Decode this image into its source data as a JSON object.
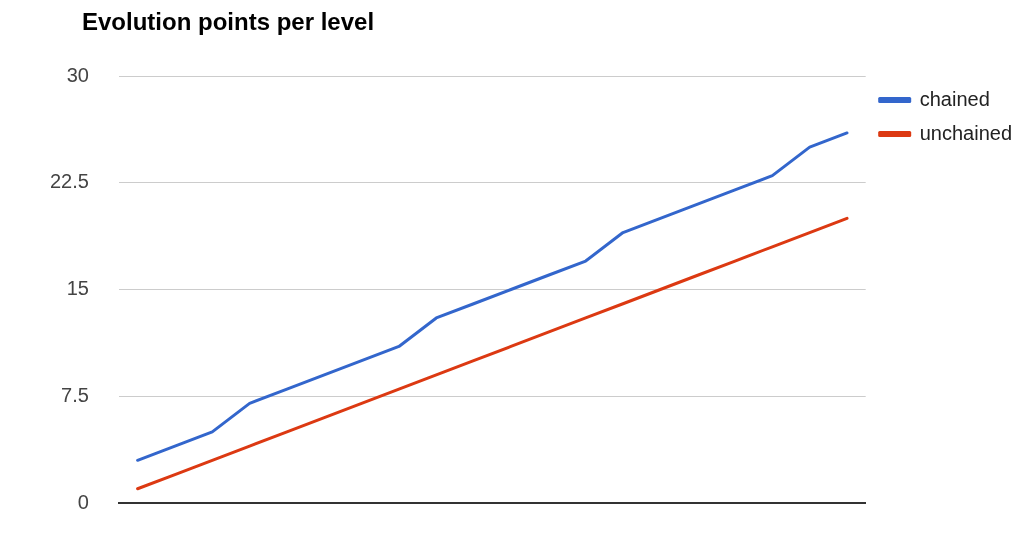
{
  "chart_data": {
    "type": "line",
    "title": "Evolution points per level",
    "categories": [
      null,
      null,
      null,
      null,
      null,
      null,
      null,
      null,
      null,
      null,
      null,
      null,
      null,
      null,
      null,
      null,
      null,
      null,
      null,
      null
    ],
    "series": [
      {
        "name": "chained",
        "color": "#3366cc",
        "values": [
          3,
          4,
          5,
          7,
          8,
          9,
          10,
          11,
          13,
          14,
          15,
          16,
          17,
          19,
          20,
          21,
          22,
          23,
          25,
          26
        ]
      },
      {
        "name": "unchained",
        "color": "#dc3912",
        "values": [
          1,
          2,
          3,
          4,
          5,
          6,
          7,
          8,
          9,
          10,
          11,
          12,
          13,
          14,
          15,
          16,
          17,
          18,
          19,
          20
        ]
      }
    ],
    "ylim": [
      0,
      30
    ],
    "yticks": [
      0,
      7.5,
      15,
      22.5,
      30
    ],
    "grid": "y",
    "legend": "top right",
    "marker": "none",
    "line_style": "solid"
  }
}
